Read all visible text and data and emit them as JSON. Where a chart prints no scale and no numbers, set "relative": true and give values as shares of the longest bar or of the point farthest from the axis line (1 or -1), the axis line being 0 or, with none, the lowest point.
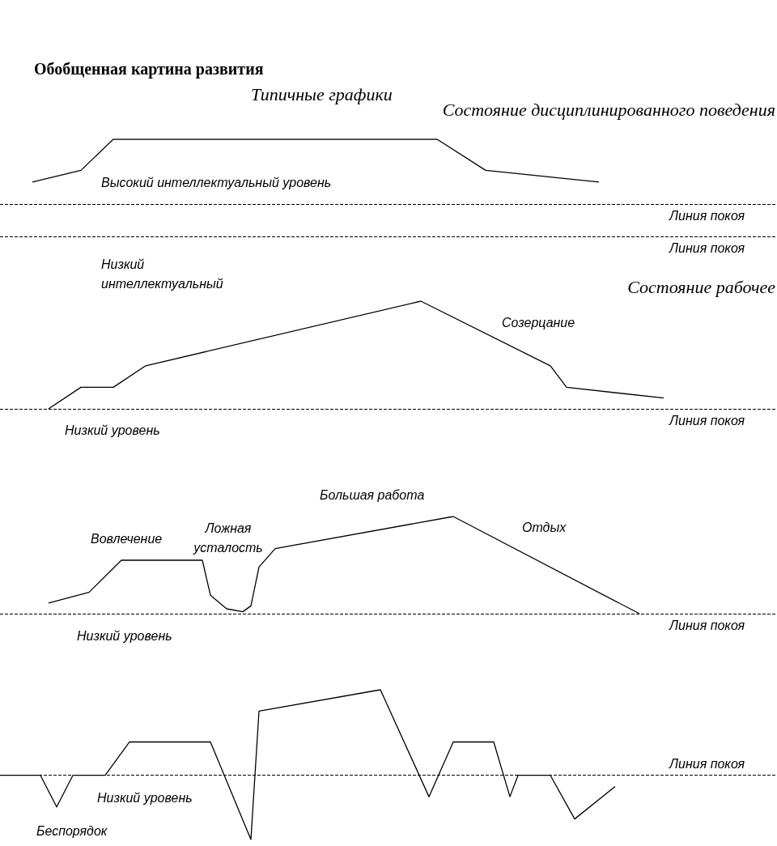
{
  "chart_data": [
    {
      "type": "line",
      "title": "Обобщенная картина развития",
      "subtitle": "Типичные графики",
      "relative": true,
      "color": "#000000",
      "line_style": "solid",
      "marker": "none",
      "annotations": [
        "Состояние дисциплинированного поведения",
        "Высокий интеллектуальный уровень",
        "Низкий\nинтеллектуальный"
      ],
      "ref_lines": [
        {
          "axis": "y",
          "value": 0.33,
          "label": "Линия покоя",
          "line_style": "dashed",
          "color": "#000000"
        },
        {
          "axis": "y",
          "value": 0,
          "label": "Линия покоя",
          "line_style": "dashed",
          "color": "#000000"
        }
      ],
      "categories": [
        null,
        null,
        null,
        null,
        null,
        null,
        null,
        null,
        null,
        null,
        null,
        null,
        null,
        null,
        null,
        null,
        null,
        null,
        null,
        null,
        null,
        null,
        null,
        null,
        null,
        null,
        null,
        null,
        null,
        null,
        null,
        null,
        null,
        null,
        null,
        null,
        null,
        null,
        null,
        null,
        null,
        null,
        null,
        null,
        null,
        null,
        null,
        null,
        null
      ],
      "values": [
        null,
        null,
        0.56,
        null,
        null,
        0.68,
        null,
        1,
        null,
        null,
        null,
        null,
        null,
        null,
        null,
        null,
        null,
        null,
        null,
        null,
        null,
        null,
        null,
        null,
        null,
        null,
        null,
        1,
        null,
        null,
        0.68,
        null,
        null,
        null,
        null,
        null,
        null,
        0.56,
        null,
        null,
        null,
        null,
        null,
        null,
        null,
        null,
        null,
        null,
        null
      ]
    },
    {
      "type": "line",
      "title": "Состояние рабочее",
      "relative": true,
      "color": "#000000",
      "line_style": "solid",
      "marker": "none",
      "annotations": [
        "Созерцание",
        "Низкий уровень"
      ],
      "ref_lines": [
        {
          "axis": "y",
          "value": 0,
          "label": "Линия покоя",
          "line_style": "dashed",
          "color": "#000000"
        }
      ],
      "categories": [
        null,
        null,
        null,
        null,
        null,
        null,
        null,
        null,
        null,
        null,
        null,
        null,
        null,
        null,
        null,
        null,
        null,
        null,
        null,
        null,
        null,
        null,
        null,
        null,
        null,
        null,
        null,
        null,
        null,
        null,
        null,
        null,
        null,
        null,
        null,
        null,
        null,
        null,
        null,
        null,
        null,
        null,
        null,
        null,
        null,
        null,
        null,
        null,
        null
      ],
      "values": [
        null,
        null,
        null,
        0,
        null,
        0.2,
        null,
        0.2,
        null,
        0.4,
        null,
        null,
        null,
        null,
        null,
        null,
        null,
        null,
        null,
        null,
        null,
        null,
        null,
        null,
        null,
        null,
        1,
        null,
        null,
        null,
        null,
        null,
        null,
        null,
        0.4,
        0.2,
        null,
        null,
        null,
        null,
        null,
        0.1,
        null,
        null,
        null,
        null,
        null,
        null,
        null
      ]
    },
    {
      "type": "line",
      "relative": true,
      "color": "#000000",
      "line_style": "solid",
      "marker": "none",
      "annotations": [
        "Большая работа",
        "Вовлечение",
        "Ложная\nусталость",
        "Отдых",
        "Низкий уровень"
      ],
      "ref_lines": [
        {
          "axis": "y",
          "value": 0,
          "label": "Линия покоя",
          "line_style": "dashed",
          "color": "#000000"
        }
      ],
      "categories": [
        null,
        null,
        null,
        null,
        null,
        null,
        null,
        null,
        null,
        null,
        null,
        null,
        null,
        null,
        null,
        null,
        null,
        null,
        null,
        null,
        null,
        null,
        null,
        null,
        null,
        null,
        null,
        null,
        null,
        null,
        null,
        null,
        null,
        null,
        null,
        null,
        null,
        null,
        null,
        null,
        null,
        null,
        null,
        null,
        null,
        null,
        null,
        null,
        null,
        null,
        null,
        null,
        null,
        null,
        null,
        null,
        null,
        null,
        null,
        null,
        null,
        null,
        null,
        null,
        null,
        null,
        null,
        null,
        null,
        null,
        null,
        null,
        null,
        null,
        null,
        null,
        null,
        null,
        null,
        null,
        null,
        null,
        null,
        null,
        null,
        null,
        null,
        null,
        null,
        null,
        null,
        null,
        null,
        null,
        null,
        null,
        null
      ],
      "values": [
        null,
        null,
        null,
        null,
        null,
        null,
        0.11,
        null,
        null,
        null,
        null,
        0.22,
        null,
        null,
        null,
        0.55,
        null,
        null,
        null,
        null,
        null,
        null,
        null,
        null,
        null,
        0.55,
        0.19,
        null,
        0.05,
        null,
        0.02,
        0.08,
        0.48,
        null,
        0.67,
        null,
        null,
        null,
        null,
        null,
        null,
        null,
        null,
        null,
        null,
        null,
        null,
        null,
        null,
        null,
        null,
        null,
        null,
        null,
        null,
        null,
        1,
        null,
        null,
        null,
        null,
        null,
        null,
        null,
        null,
        null,
        null,
        null,
        null,
        null,
        null,
        null,
        null,
        null,
        null,
        null,
        null,
        null,
        null,
        0,
        null,
        null,
        null,
        null,
        null,
        null,
        null,
        null,
        null,
        null,
        null,
        null,
        null,
        null,
        null,
        null,
        null
      ]
    },
    {
      "type": "line",
      "relative": true,
      "color": "#000000",
      "line_style": "solid",
      "marker": "none",
      "annotations": [
        "Низкий уровень",
        "Беспорядок"
      ],
      "ref_lines": [
        {
          "axis": "y",
          "value": 0,
          "label": "Линия покоя",
          "line_style": "dashed",
          "color": "#000000"
        }
      ],
      "categories": [
        null,
        null,
        null,
        null,
        null,
        null,
        null,
        null,
        null,
        null,
        null,
        null,
        null,
        null,
        null,
        null,
        null,
        null,
        null,
        null,
        null,
        null,
        null,
        null,
        null,
        null,
        null,
        null,
        null,
        null,
        null,
        null,
        null,
        null,
        null,
        null,
        null,
        null,
        null,
        null,
        null,
        null,
        null,
        null,
        null,
        null,
        null,
        null,
        null,
        null,
        null,
        null,
        null,
        null,
        null,
        null,
        null,
        null,
        null,
        null,
        null,
        null,
        null,
        null,
        null,
        null,
        null,
        null,
        null,
        null,
        null,
        null,
        null,
        null,
        null,
        null,
        null,
        null,
        null,
        null,
        null,
        null,
        null,
        null,
        null,
        null,
        null,
        null,
        null,
        null,
        null,
        null,
        null,
        null,
        null,
        null,
        null
      ],
      "values": [
        0,
        null,
        null,
        null,
        null,
        0,
        null,
        -0.37,
        null,
        0,
        null,
        null,
        null,
        0,
        null,
        null,
        0.39,
        null,
        null,
        null,
        null,
        null,
        null,
        null,
        null,
        null,
        0.39,
        null,
        null,
        null,
        null,
        -0.75,
        0.75,
        null,
        null,
        null,
        null,
        null,
        null,
        null,
        null,
        null,
        null,
        null,
        null,
        null,
        null,
        1,
        null,
        null,
        null,
        null,
        null,
        -0.25,
        null,
        null,
        0.39,
        null,
        null,
        null,
        null,
        0.39,
        null,
        -0.25,
        0,
        null,
        null,
        null,
        0,
        null,
        null,
        -0.51,
        null,
        null,
        null,
        null,
        -0.13,
        null,
        null,
        null,
        null,
        null,
        null,
        null,
        null,
        null,
        null,
        null,
        null,
        null,
        null,
        null,
        null,
        null,
        null,
        null,
        null
      ]
    }
  ]
}
